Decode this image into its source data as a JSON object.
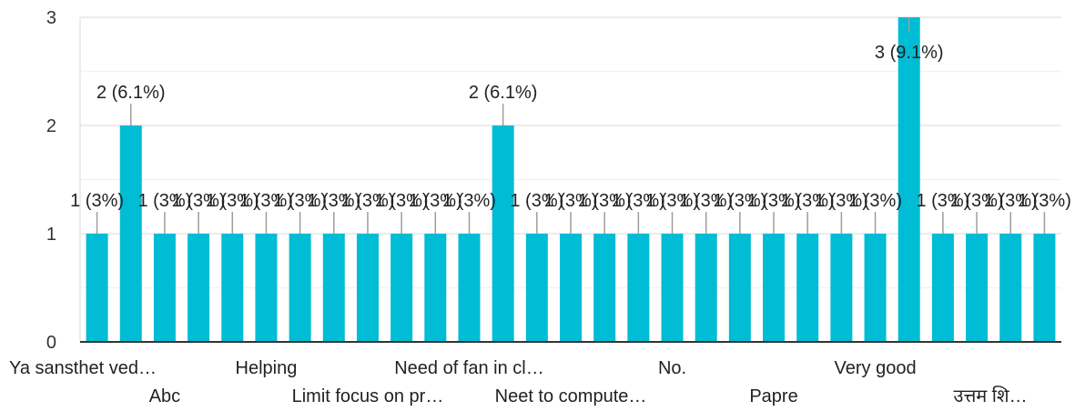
{
  "chart_data": {
    "type": "bar",
    "categories": [
      "Ya sansthet ved…",
      "",
      "Abc",
      "",
      "",
      "Helping",
      "",
      "",
      "Limit focus on pr…",
      "",
      "",
      "Need of fan in cl…",
      "",
      "",
      "Neet to compute…",
      "",
      "",
      "No.",
      "",
      "",
      "Papre",
      "",
      "",
      "Very good",
      "",
      "",
      "उत्तम शि…",
      "",
      ""
    ],
    "values": [
      1,
      2,
      1,
      1,
      1,
      1,
      1,
      1,
      1,
      1,
      1,
      1,
      2,
      1,
      1,
      1,
      1,
      1,
      1,
      1,
      1,
      1,
      1,
      1,
      3,
      1,
      1,
      1,
      1
    ],
    "data_labels": [
      "1 (3%)",
      "2 (6.1%)",
      "1 (3%)",
      "1 (3%)",
      "1 (3%)",
      "1 (3%)",
      "1 (3%)",
      "1 (3%)",
      "1 (3%)",
      "1 (3%)",
      "1 (3%)",
      "1 (3%)",
      "2 (6.1%)",
      "1 (3%)",
      "1 (3%)",
      "1 (3%)",
      "1 (3%)",
      "1 (3%)",
      "1 (3%)",
      "1 (3%)",
      "1 (3%)",
      "1 (3%)",
      "1 (3%)",
      "1 (3%)",
      "3 (9.1%)",
      "1 (3%)",
      "1 (3%)",
      "1 (3%)",
      "1 (3%)"
    ],
    "yticks": [
      "0",
      "1",
      "2",
      "3"
    ],
    "ylim": [
      0,
      3
    ],
    "grid": true,
    "bar_color": "#00bcd4",
    "grid_color": "#e6e6e6",
    "label_line_color": "#9e9e9e"
  }
}
